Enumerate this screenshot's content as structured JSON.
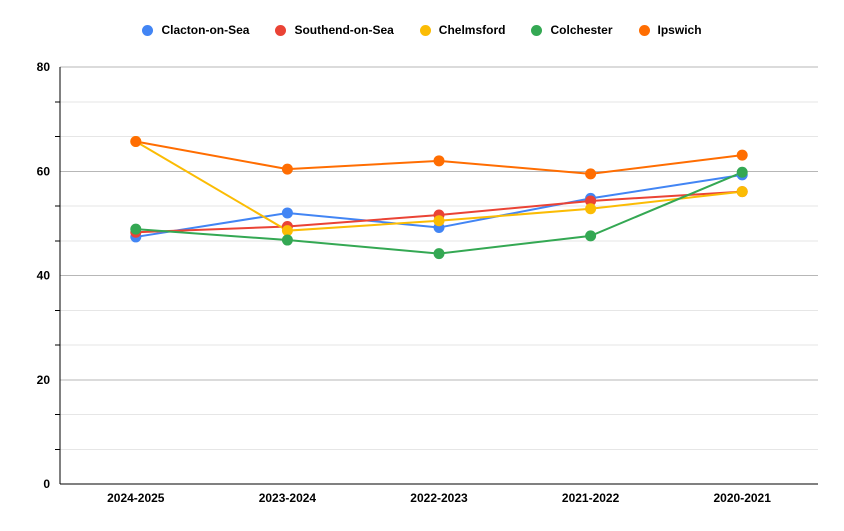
{
  "colors": {
    "background": "#ffffff",
    "axis": "#000000",
    "major_gridline": "#b7b7b7",
    "minor_gridline": "#e6e6e6",
    "label_text": "#000000"
  },
  "chart_data": {
    "type": "line",
    "title": "",
    "xlabel": "",
    "ylabel": "",
    "categories": [
      "2024-2025",
      "2023-2024",
      "2022-2023",
      "2021-2022",
      "2020-2021"
    ],
    "series": [
      {
        "name": "Clacton-on-Sea",
        "color": "#4285F4",
        "values": [
          47.4,
          52.0,
          49.2,
          54.8,
          59.3
        ]
      },
      {
        "name": "Southend-on-Sea",
        "color": "#EA4335",
        "values": [
          48.3,
          49.4,
          51.6,
          54.3,
          56.1
        ]
      },
      {
        "name": "Chelmsford",
        "color": "#FBBC04",
        "values": [
          65.7,
          48.6,
          50.5,
          52.8,
          56.1
        ]
      },
      {
        "name": "Colchester",
        "color": "#34A853",
        "values": [
          48.9,
          46.8,
          44.2,
          47.6,
          59.8
        ]
      },
      {
        "name": "Ipswich",
        "color": "#FF6D01",
        "values": [
          65.7,
          60.4,
          62.0,
          59.5,
          63.1
        ]
      }
    ],
    "ylim": [
      0,
      80
    ],
    "y_major_ticks": [
      0,
      20,
      40,
      60,
      80
    ],
    "y_minor_divisions": 3,
    "grid": true,
    "legend_position": "top",
    "marker": "circle",
    "point_radius": 5.5,
    "line_width": 2
  }
}
